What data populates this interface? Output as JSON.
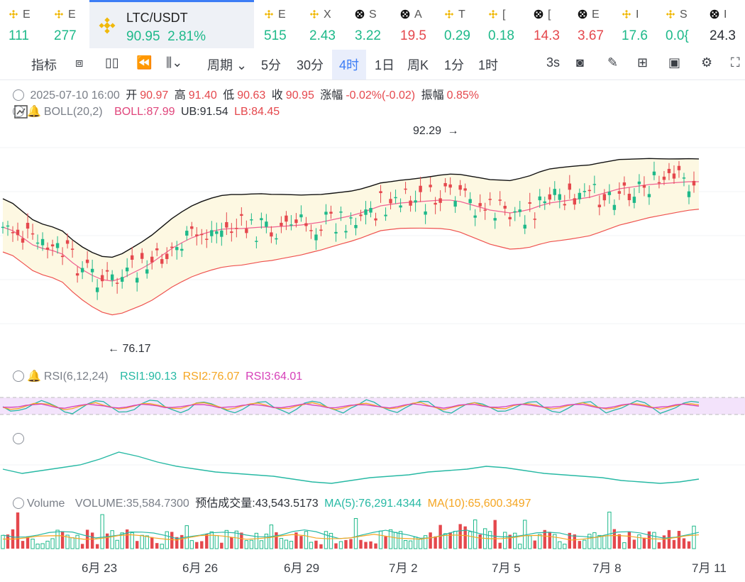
{
  "tickers": [
    {
      "top": "E",
      "value": "111",
      "color": "up",
      "icon": "bnb-icon"
    },
    {
      "top": "E",
      "value": "277",
      "color": "up",
      "icon": "bnb-icon"
    },
    {
      "top": "LTC/USDT",
      "value": "90.95",
      "change": "2.81%",
      "color": "up",
      "icon": "bnb-icon",
      "active": true
    },
    {
      "top": "E",
      "value": "515",
      "color": "up",
      "icon": "bnb-icon"
    },
    {
      "top": "X",
      "value": "2.43",
      "color": "up",
      "icon": "bnb-icon"
    },
    {
      "top": "S",
      "value": "3.22",
      "color": "up",
      "icon": "pixel-icon"
    },
    {
      "top": "A",
      "value": "19.5",
      "color": "dn",
      "icon": "pixel-icon"
    },
    {
      "top": "T",
      "value": "0.29",
      "color": "up",
      "icon": "bnb-icon"
    },
    {
      "top": "[",
      "value": "0.18",
      "color": "up",
      "icon": "bnb-icon"
    },
    {
      "top": "[",
      "value": "14.3",
      "color": "dn",
      "icon": "pixel-icon"
    },
    {
      "top": "E",
      "value": "3.67",
      "color": "dn",
      "icon": "pixel-icon"
    },
    {
      "top": "I",
      "value": "17.6",
      "color": "up",
      "icon": "bnb-icon"
    },
    {
      "top": "S",
      "value": "0.0{",
      "color": "up",
      "icon": "bnb-icon"
    },
    {
      "top": "I",
      "value": "24.3",
      "color": "dark",
      "icon": "pixel-icon"
    }
  ],
  "toolbar": {
    "indicators": "指标",
    "period": "周期",
    "intervals": [
      "5分",
      "30分",
      "4时",
      "1日",
      "周K",
      "1分",
      "1时"
    ],
    "selected": "4时",
    "refresh": "3s"
  },
  "ohlc": {
    "datetime": "2025-07-10 16:00",
    "open_label": "开",
    "open": "90.97",
    "high_label": "高",
    "high": "91.40",
    "low_label": "低",
    "low": "90.63",
    "close_label": "收",
    "close": "90.95",
    "change_label": "涨幅",
    "change": "-0.02%(-0.02)",
    "amp_label": "振幅",
    "amp": "0.85%"
  },
  "boll": {
    "name": "BOLL(20,2)",
    "mid": "BOLL:87.99",
    "ub": "UB:91.54",
    "lb": "LB:84.45"
  },
  "annotations": {
    "high": "92.29",
    "low": "76.17"
  },
  "rsi": {
    "name": "RSI(6,12,24)",
    "r1": "RSI1:90.13",
    "r2": "RSI2:76.07",
    "r3": "RSI3:64.01"
  },
  "volume": {
    "name": "Volume",
    "vol": "VOLUME:35,584.7300",
    "est": "预估成交量:43,543.5173",
    "ma5": "MA(5):76,291.4344",
    "ma10": "MA(10):65,600.3497"
  },
  "xaxis": [
    "6月 23",
    "6月 26",
    "6月 29",
    "7月 2",
    "7月 5",
    "7月 8",
    "7月 11"
  ],
  "colors": {
    "up": "#1eb98a",
    "down": "#e5484d",
    "accent": "#3c7df5"
  }
}
